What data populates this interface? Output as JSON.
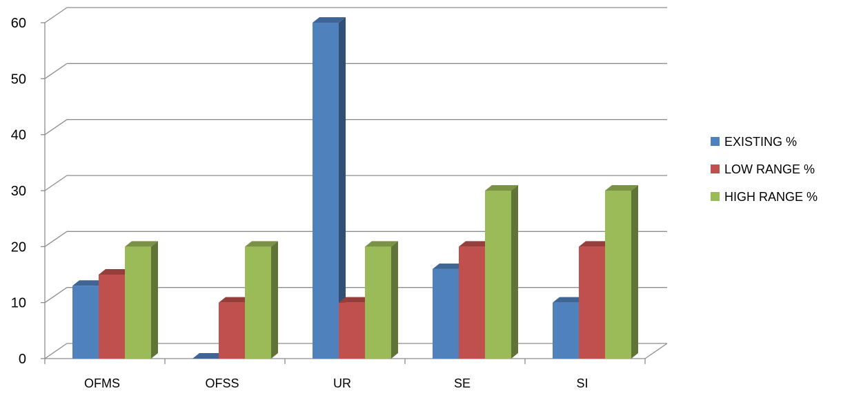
{
  "chart_data": {
    "type": "bar",
    "title": "",
    "xlabel": "",
    "ylabel": "",
    "categories": [
      "OFMS",
      "OFSS",
      "UR",
      "SE",
      "SI"
    ],
    "series": [
      {
        "name": "EXISTING %",
        "color": "#4F81BD",
        "values": [
          13,
          0,
          60,
          16,
          10
        ]
      },
      {
        "name": "LOW RANGE %",
        "color": "#C0504D",
        "values": [
          15,
          10,
          10,
          20,
          20
        ]
      },
      {
        "name": "HIGH RANGE %",
        "color": "#9BBB59",
        "values": [
          20,
          20,
          20,
          30,
          30
        ]
      }
    ],
    "ylim": [
      0,
      60
    ],
    "yticks": [
      0,
      10,
      20,
      30,
      40,
      50,
      60
    ],
    "grid": true,
    "legend_position": "right",
    "style": "3d-clustered-column"
  }
}
